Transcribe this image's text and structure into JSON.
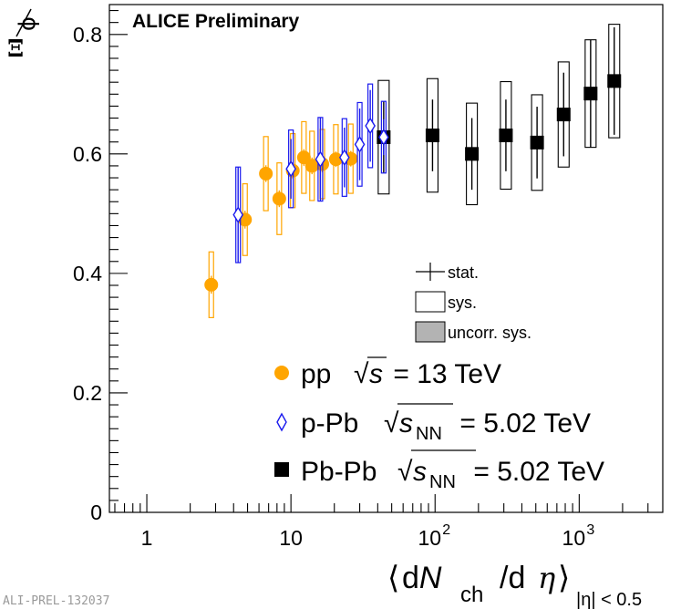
{
  "chart_data": {
    "type": "scatter",
    "title": "ALICE Preliminary",
    "ylabel_num": "Ξ",
    "ylabel_den": "ϕ",
    "xlabel_main": "dN",
    "xlabel_sub": "ch",
    "xlabel_den": "dη",
    "xlabel_cut": "|η| < 0.5",
    "xscale": "log",
    "xlim": [
      0.55,
      3800
    ],
    "ylim": [
      0,
      0.85
    ],
    "x_ticks": [
      {
        "value": 1,
        "label": "1"
      },
      {
        "value": 10,
        "label": "10"
      },
      {
        "value": 100,
        "label": "10",
        "exp": "2"
      },
      {
        "value": 1000,
        "label": "10",
        "exp": "3"
      }
    ],
    "y_ticks": [
      {
        "value": 0,
        "label": "0"
      },
      {
        "value": 0.2,
        "label": "0.2"
      },
      {
        "value": 0.4,
        "label": "0.4"
      },
      {
        "value": 0.6,
        "label": "0.6"
      },
      {
        "value": 0.8,
        "label": "0.8"
      }
    ],
    "legend_errors": {
      "stat": "stat.",
      "sys": "sys.",
      "uncorr": "uncorr. sys."
    },
    "series": [
      {
        "name": "pp",
        "energy_label": "√s = 13 TeV",
        "sqrt": "s",
        "sub": "",
        "value_text": " = 13 TeV",
        "marker": "circle",
        "color": "#ffa500",
        "points": [
          {
            "x": 2.8,
            "y": 0.381,
            "stat": 0.015,
            "sys": 0.055
          },
          {
            "x": 4.8,
            "y": 0.49,
            "stat": 0.015,
            "sys": 0.06
          },
          {
            "x": 6.7,
            "y": 0.567,
            "stat": 0.014,
            "sys": 0.062
          },
          {
            "x": 8.3,
            "y": 0.525,
            "stat": 0.014,
            "sys": 0.06
          },
          {
            "x": 10.3,
            "y": 0.572,
            "stat": 0.014,
            "sys": 0.062
          },
          {
            "x": 12.3,
            "y": 0.594,
            "stat": 0.014,
            "sys": 0.06
          },
          {
            "x": 14.0,
            "y": 0.58,
            "stat": 0.014,
            "sys": 0.058
          },
          {
            "x": 16.5,
            "y": 0.583,
            "stat": 0.014,
            "sys": 0.058
          },
          {
            "x": 20.5,
            "y": 0.591,
            "stat": 0.013,
            "sys": 0.058
          },
          {
            "x": 26.0,
            "y": 0.592,
            "stat": 0.013,
            "sys": 0.058
          }
        ]
      },
      {
        "name": "p-Pb",
        "energy_label": "√sNN = 5.02 TeV",
        "sqrt": "s",
        "sub": "NN",
        "value_text": " = 5.02 TeV",
        "marker": "open-diamond",
        "color": "#1a1aee",
        "points": [
          {
            "x": 4.3,
            "y": 0.498,
            "stat": 0.08,
            "sys": 0.08
          },
          {
            "x": 10.0,
            "y": 0.575,
            "stat": 0.05,
            "sys": 0.065
          },
          {
            "x": 16.0,
            "y": 0.591,
            "stat": 0.07,
            "sys": 0.07
          },
          {
            "x": 23.5,
            "y": 0.594,
            "stat": 0.05,
            "sys": 0.065
          },
          {
            "x": 30.0,
            "y": 0.616,
            "stat": 0.06,
            "sys": 0.07
          },
          {
            "x": 35.5,
            "y": 0.647,
            "stat": 0.06,
            "sys": 0.07
          },
          {
            "x": 44.0,
            "y": 0.628,
            "stat": 0.03,
            "sys": 0.06
          }
        ]
      },
      {
        "name": "Pb-Pb",
        "energy_label": "√sNN = 5.02 TeV",
        "sqrt": "s",
        "sub": "NN",
        "value_text": " = 5.02 TeV",
        "marker": "square",
        "color": "#000000",
        "points": [
          {
            "x": 44.0,
            "y": 0.628,
            "stat": 0.06,
            "sys": 0.095
          },
          {
            "x": 96.0,
            "y": 0.631,
            "stat": 0.06,
            "sys": 0.095
          },
          {
            "x": 180.0,
            "y": 0.6,
            "stat": 0.06,
            "sys": 0.085
          },
          {
            "x": 310.0,
            "y": 0.631,
            "stat": 0.06,
            "sys": 0.09
          },
          {
            "x": 510.0,
            "y": 0.619,
            "stat": 0.06,
            "sys": 0.08
          },
          {
            "x": 780.0,
            "y": 0.666,
            "stat": 0.07,
            "sys": 0.088
          },
          {
            "x": 1200.0,
            "y": 0.701,
            "stat": 0.09,
            "sys": 0.09
          },
          {
            "x": 1750.0,
            "y": 0.722,
            "stat": 0.09,
            "sys": 0.095
          }
        ]
      }
    ]
  },
  "footer": {
    "preliminary_id": "ALI-PREL-132037"
  }
}
